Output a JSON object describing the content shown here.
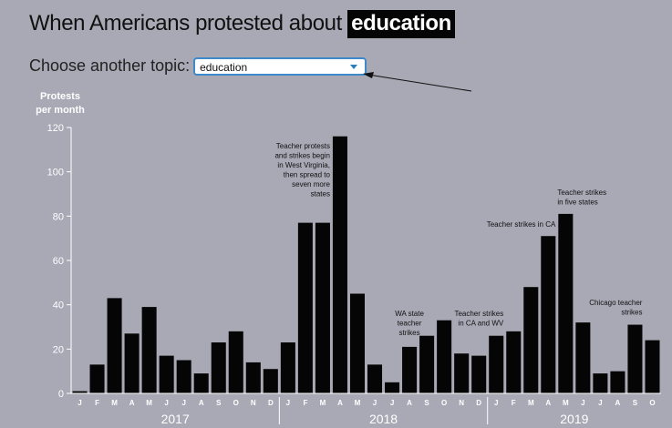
{
  "header": {
    "title_prefix": "When Americans protested about",
    "title_topic": "education"
  },
  "chooser": {
    "label": "Choose another topic:",
    "selected": "education"
  },
  "chart_data": {
    "type": "bar",
    "ylabel": "Protests per month",
    "ylabel_lines": [
      "Protests",
      "per month"
    ],
    "ylim": [
      0,
      120
    ],
    "yticks": [
      0,
      20,
      40,
      60,
      80,
      100,
      120
    ],
    "grid": false,
    "categories": [
      "J",
      "F",
      "M",
      "A",
      "M",
      "J",
      "J",
      "A",
      "S",
      "O",
      "N",
      "D",
      "J",
      "F",
      "M",
      "A",
      "M",
      "J",
      "J",
      "A",
      "S",
      "O",
      "N",
      "D",
      "J",
      "F",
      "M",
      "A",
      "M",
      "J",
      "J",
      "A",
      "S",
      "O"
    ],
    "years": [
      {
        "label": "2017",
        "start": 0,
        "end": 11
      },
      {
        "label": "2018",
        "start": 12,
        "end": 23
      },
      {
        "label": "2019",
        "start": 24,
        "end": 33
      }
    ],
    "series": [
      {
        "values": [
          1,
          13,
          43,
          27,
          39,
          17,
          15,
          9,
          23,
          28,
          14,
          11,
          23,
          77,
          77,
          116,
          45,
          13,
          5,
          21,
          26,
          33,
          18,
          17,
          26,
          28,
          48,
          71,
          81,
          32,
          9,
          10,
          31,
          24
        ]
      }
    ],
    "annotations": [
      {
        "index": 15,
        "align": "end",
        "lines": [
          "Teacher protests",
          "and strikes begin",
          "in West Virginia,",
          "then spread to",
          "seven more",
          "states"
        ]
      },
      {
        "index": 19,
        "align": "middle",
        "lines": [
          "WA state",
          "teacher",
          "strikes"
        ]
      },
      {
        "index": 25,
        "align": "end",
        "lines": [
          "Teacher strikes",
          "in CA and WV"
        ]
      },
      {
        "index": 28,
        "align": "end",
        "lines": [
          "Teacher strikes in CA"
        ]
      },
      {
        "index": 28,
        "align": "start",
        "lines": [
          "Teacher strikes",
          "in five states"
        ]
      },
      {
        "index": 33,
        "align": "end",
        "lines": [
          "Chicago teacher",
          "strikes"
        ]
      }
    ]
  }
}
